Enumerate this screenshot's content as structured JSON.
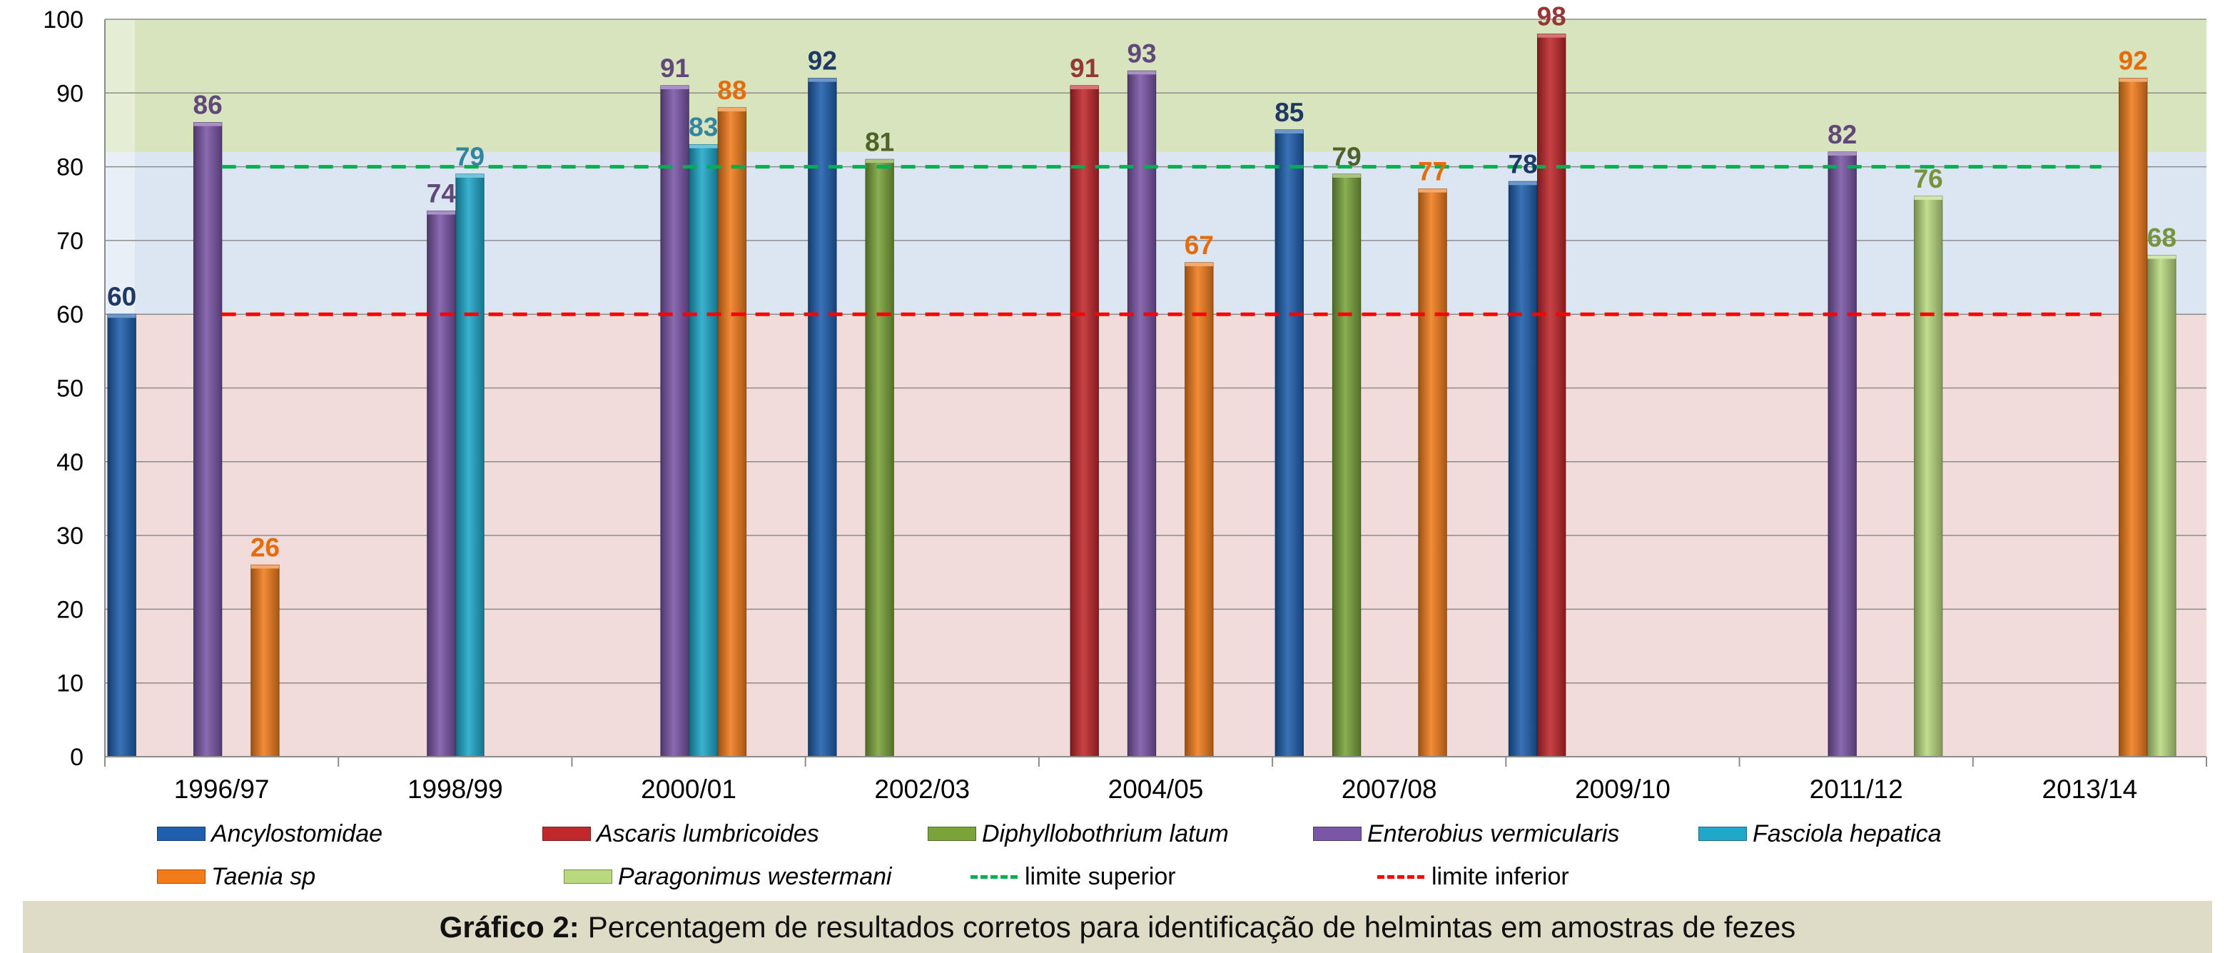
{
  "chart_data": {
    "type": "bar",
    "categories": [
      "1996/97",
      "1998/99",
      "2000/01",
      "2002/03",
      "2004/05",
      "2007/08",
      "2009/10",
      "2011/12",
      "2013/14"
    ],
    "ylim": [
      0,
      100
    ],
    "yticks": [
      0,
      10,
      20,
      30,
      40,
      50,
      60,
      70,
      80,
      90,
      100
    ],
    "grid": true,
    "legend_position": "bottom",
    "background_bands": [
      {
        "from": 0,
        "to": 60,
        "color": "#f2dcdb"
      },
      {
        "from": 60,
        "to": 82,
        "color": "#dce6f2"
      },
      {
        "from": 82,
        "to": 100,
        "color": "#d7e4bd"
      }
    ],
    "reference_lines": [
      {
        "name": "limite superior",
        "value": 80,
        "color": "#00b050"
      },
      {
        "name": "limite inferior",
        "value": 60,
        "color": "#ff0000"
      }
    ],
    "series": [
      {
        "name": "Ancylostomidae",
        "color": "#1f5fad",
        "label_color": "#1f3864",
        "values": [
          60,
          null,
          null,
          92,
          null,
          85,
          78,
          null,
          null
        ]
      },
      {
        "name": "Ascaris lumbricoides",
        "color": "#c0282c",
        "label_color": "#953735",
        "values": [
          null,
          null,
          null,
          null,
          91,
          null,
          98,
          null,
          null
        ]
      },
      {
        "name": "Diphyllobothrium latum",
        "color": "#7aa33a",
        "label_color": "#4f6228",
        "values": [
          null,
          null,
          null,
          81,
          null,
          79,
          null,
          null,
          null
        ]
      },
      {
        "name": "Enterobius vermicularis",
        "color": "#7a56a6",
        "label_color": "#60497a",
        "values": [
          86,
          74,
          91,
          null,
          93,
          null,
          null,
          82,
          null
        ]
      },
      {
        "name": "Fasciola hepatica",
        "color": "#1fa8c9",
        "label_color": "#31859c",
        "values": [
          null,
          79,
          83,
          null,
          null,
          null,
          null,
          null,
          null
        ]
      },
      {
        "name": "Taenia sp",
        "color": "#f07c1c",
        "label_color": "#e46c0a",
        "values": [
          26,
          null,
          88,
          null,
          67,
          77,
          null,
          null,
          92
        ]
      },
      {
        "name": "Paragonimus westermani",
        "color": "#b9d97f",
        "label_color": "#77933c",
        "values": [
          null,
          null,
          null,
          null,
          null,
          null,
          null,
          76,
          68
        ]
      }
    ]
  },
  "legend": [
    {
      "label": "Ancylostomidae",
      "kind": "bar",
      "color": "#1f5fad"
    },
    {
      "label": "Ascaris lumbricoides",
      "kind": "bar",
      "color": "#c0282c"
    },
    {
      "label": "Diphyllobothrium latum",
      "kind": "bar",
      "color": "#7aa33a"
    },
    {
      "label": "Enterobius vermicularis",
      "kind": "bar",
      "color": "#7a56a6"
    },
    {
      "label": "Fasciola hepatica",
      "kind": "bar",
      "color": "#1fa8c9"
    },
    {
      "label": "Taenia sp",
      "kind": "bar",
      "color": "#f07c1c"
    },
    {
      "label": "Paragonimus westermani",
      "kind": "bar",
      "color": "#b9d97f"
    },
    {
      "label": "limite superior",
      "kind": "dash",
      "color": "#00b050"
    },
    {
      "label": "limite inferior",
      "kind": "dash",
      "color": "#ff0000"
    }
  ],
  "caption": {
    "prefix": "Gráfico 2:",
    "text": "Percentagem de resultados corretos para identificação de helmintas em amostras de fezes"
  }
}
